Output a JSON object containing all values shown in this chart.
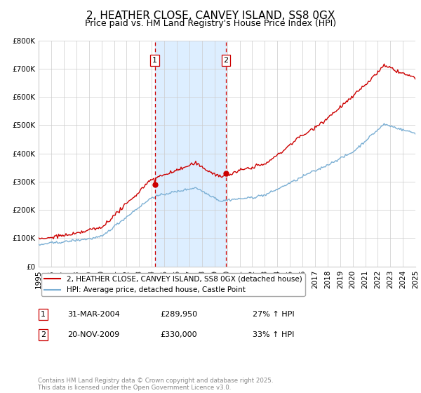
{
  "title": "2, HEATHER CLOSE, CANVEY ISLAND, SS8 0GX",
  "subtitle": "Price paid vs. HM Land Registry's House Price Index (HPI)",
  "legend_line1": "2, HEATHER CLOSE, CANVEY ISLAND, SS8 0GX (detached house)",
  "legend_line2": "HPI: Average price, detached house, Castle Point",
  "footnote": "Contains HM Land Registry data © Crown copyright and database right 2025.\nThis data is licensed under the Open Government Licence v3.0.",
  "sale1_date": "31-MAR-2004",
  "sale1_price": "£289,950",
  "sale1_hpi": "27% ↑ HPI",
  "sale2_date": "20-NOV-2009",
  "sale2_price": "£330,000",
  "sale2_hpi": "33% ↑ HPI",
  "sale1_year": 2004.25,
  "sale2_year": 2009.9,
  "sale1_price_val": 289950,
  "sale2_price_val": 330000,
  "xmin": 1995,
  "xmax": 2025,
  "ymin": 0,
  "ymax": 800000,
  "yticks": [
    0,
    100000,
    200000,
    300000,
    400000,
    500000,
    600000,
    700000,
    800000
  ],
  "ytick_labels": [
    "£0",
    "£100K",
    "£200K",
    "£300K",
    "£400K",
    "£500K",
    "£600K",
    "£700K",
    "£800K"
  ],
  "line_color_red": "#cc0000",
  "line_color_blue": "#7bafd4",
  "background_color": "#ffffff",
  "grid_color": "#cccccc",
  "shade_color": "#ddeeff",
  "title_fontsize": 11,
  "subtitle_fontsize": 9,
  "tick_fontsize": 7.5
}
